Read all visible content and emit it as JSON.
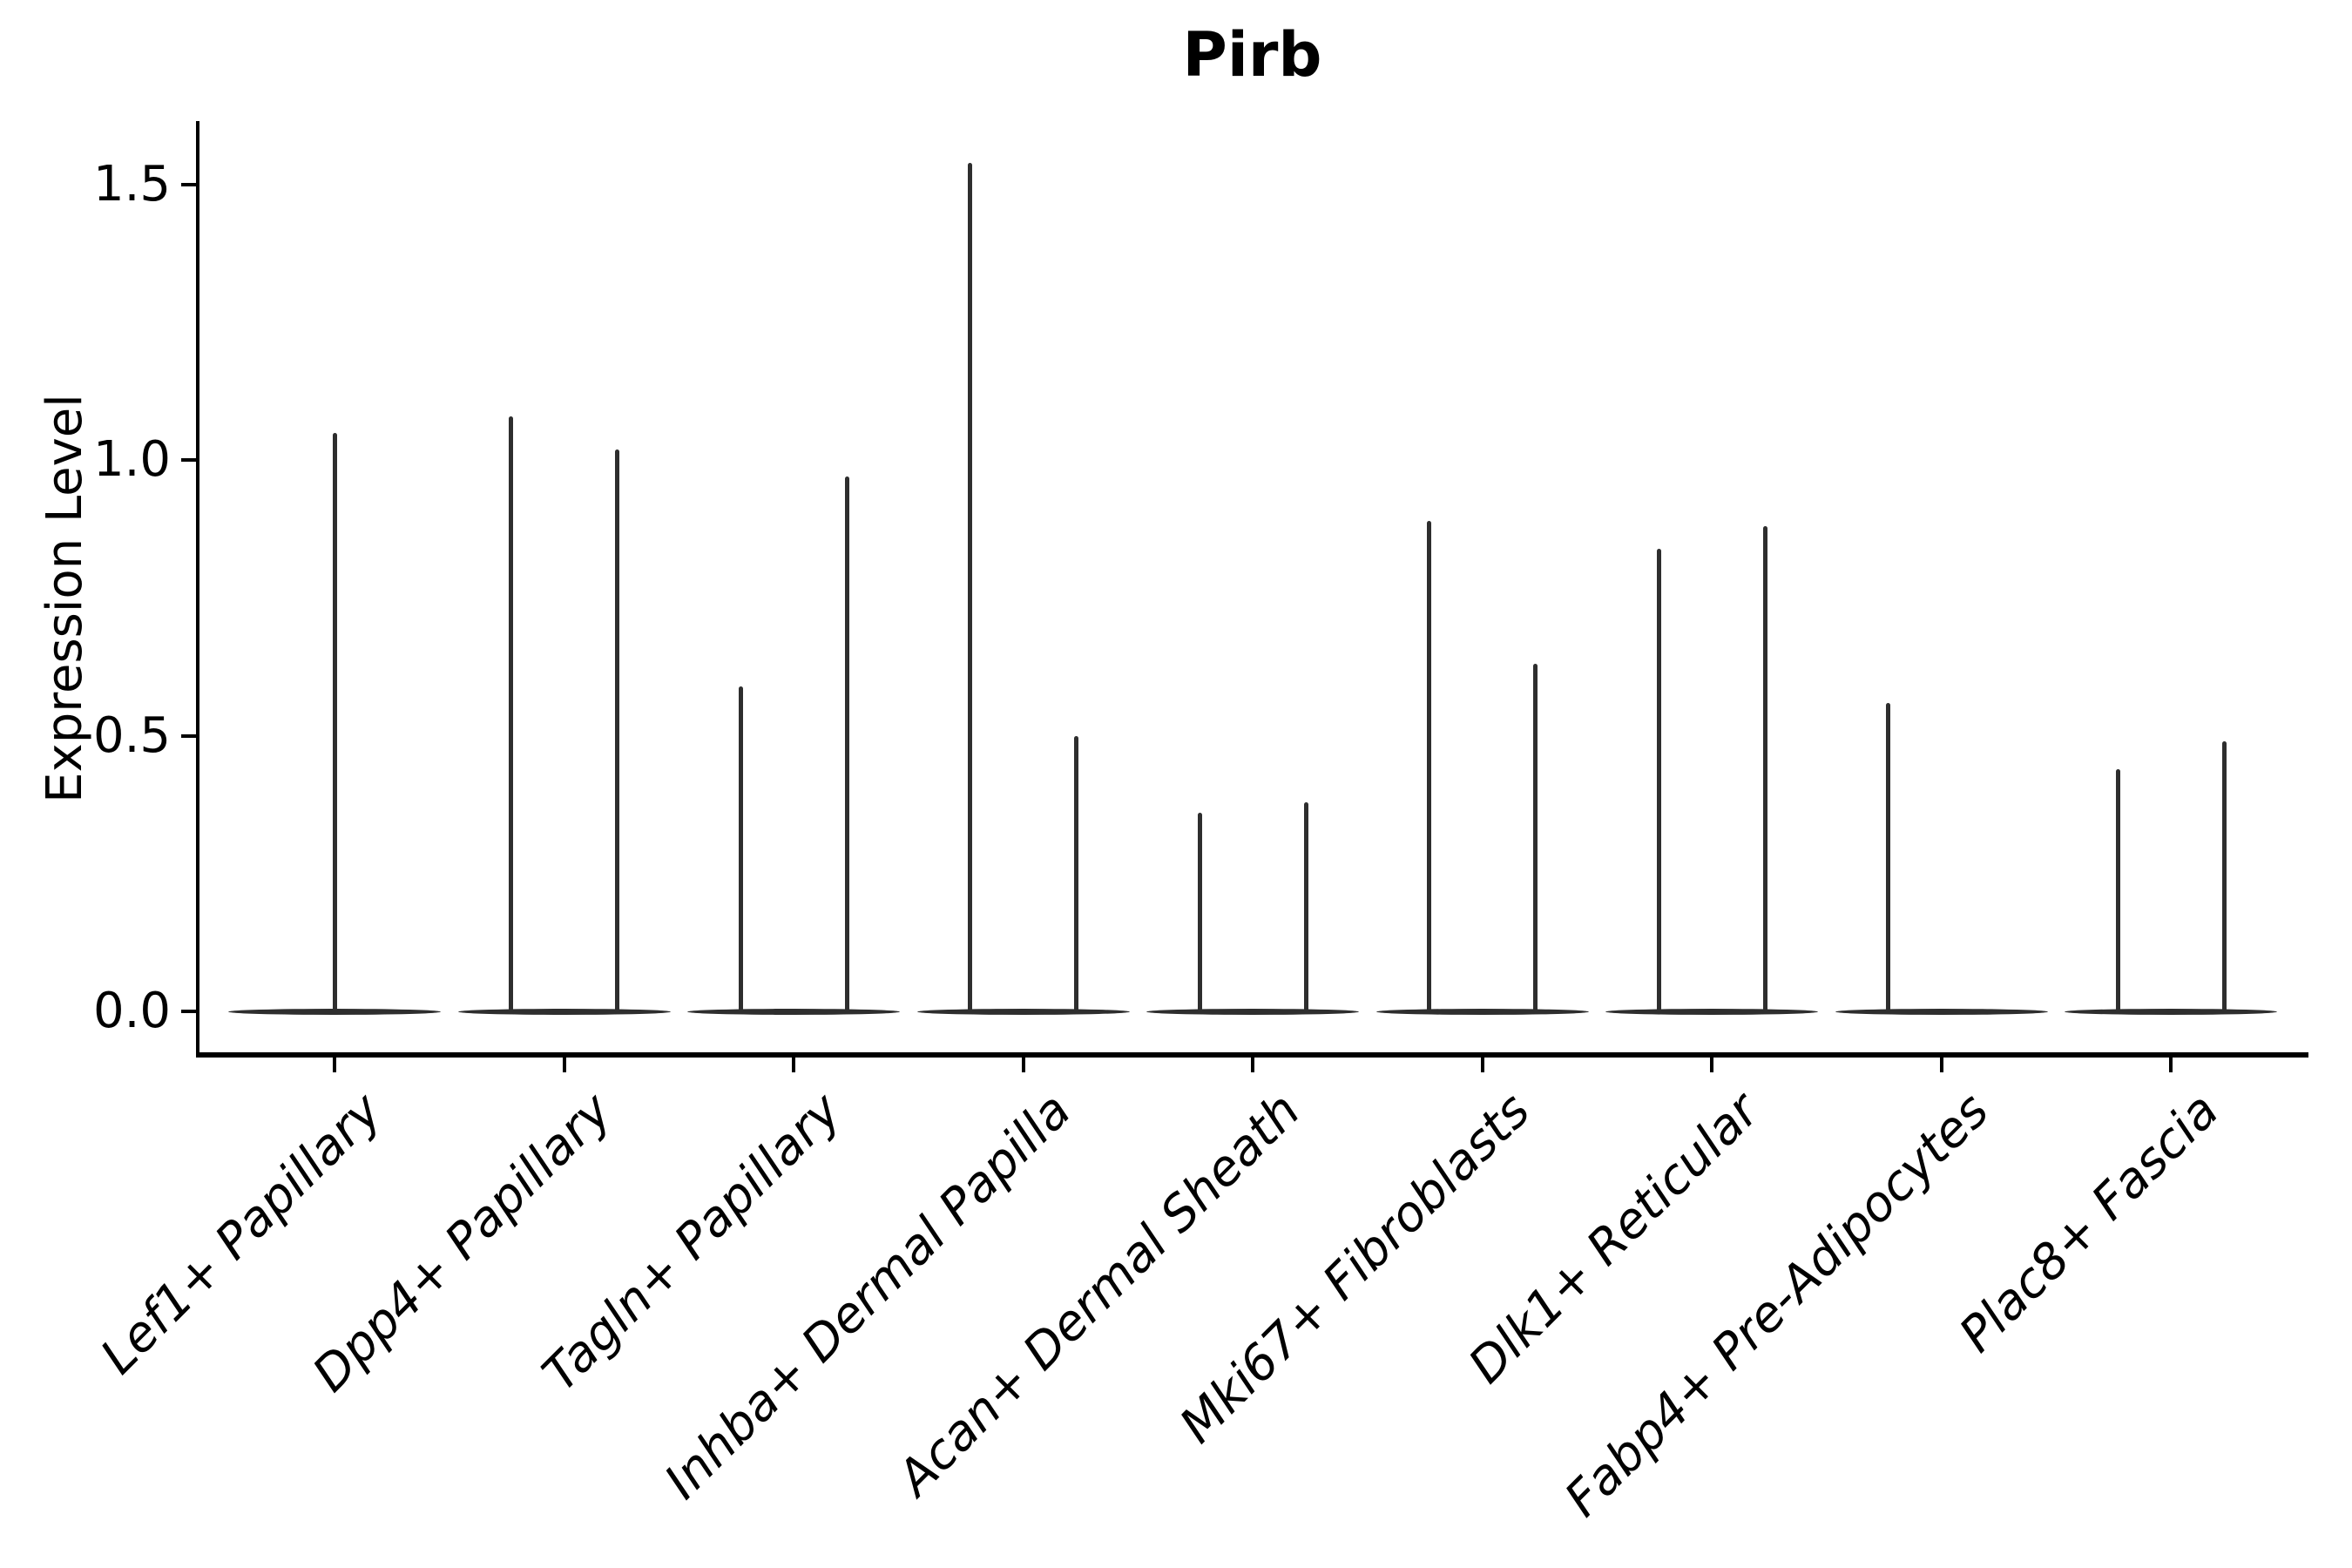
{
  "figure": {
    "title": "Pirb"
  },
  "colors": {
    "background": "#ffffff",
    "axis": "#000000",
    "text": "#000000",
    "violin_stroke": "#2e2e2e"
  },
  "chart_data": {
    "type": "violin",
    "title": "Pirb",
    "xlabel": "",
    "ylabel": "Expression Level",
    "ylim": [
      -0.07,
      1.63
    ],
    "grid": false,
    "legend": "none",
    "yticks": [
      {
        "value": 0.0,
        "label": "0.0"
      },
      {
        "value": 0.5,
        "label": "0.5"
      },
      {
        "value": 1.0,
        "label": "1.0"
      },
      {
        "value": 1.5,
        "label": "1.5"
      }
    ],
    "categories": [
      "Lef1+ Papillary",
      "Dpp4+ Papillary",
      "Tagln+ Papillary",
      "Inhba+ Dermal Papilla",
      "Acan+ Dermal Sheath",
      "Mki67+ Fibroblasts",
      "Dlk1+ Reticular",
      "Fabp4+ Pre-Adipocytes",
      "Plac8+ Fascia"
    ],
    "violins": [
      {
        "category": "Lef1+ Papillary",
        "baseline_value": 0.0,
        "spikes": [
          {
            "position": "center",
            "max_value": 1.05
          }
        ]
      },
      {
        "category": "Dpp4+ Papillary",
        "baseline_value": 0.0,
        "spikes": [
          {
            "position": "left",
            "max_value": 1.08
          },
          {
            "position": "right",
            "max_value": 1.02
          }
        ]
      },
      {
        "category": "Tagln+ Papillary",
        "baseline_value": 0.0,
        "spikes": [
          {
            "position": "left",
            "max_value": 0.59
          },
          {
            "position": "right",
            "max_value": 0.97
          }
        ]
      },
      {
        "category": "Inhba+ Dermal Papilla",
        "baseline_value": 0.0,
        "spikes": [
          {
            "position": "left",
            "max_value": 1.54
          },
          {
            "position": "right",
            "max_value": 0.5
          }
        ]
      },
      {
        "category": "Acan+ Dermal Sheath",
        "baseline_value": 0.0,
        "spikes": [
          {
            "position": "left",
            "max_value": 0.36
          },
          {
            "position": "right",
            "max_value": 0.38
          }
        ]
      },
      {
        "category": "Mki67+ Fibroblasts",
        "baseline_value": 0.0,
        "spikes": [
          {
            "position": "left",
            "max_value": 0.89
          },
          {
            "position": "right",
            "max_value": 0.63
          }
        ]
      },
      {
        "category": "Dlk1+ Reticular",
        "baseline_value": 0.0,
        "spikes": [
          {
            "position": "left",
            "max_value": 0.84
          },
          {
            "position": "right",
            "max_value": 0.88
          }
        ]
      },
      {
        "category": "Fabp4+ Pre-Adipocytes",
        "baseline_value": 0.0,
        "spikes": [
          {
            "position": "left",
            "max_value": 0.56
          }
        ]
      },
      {
        "category": "Plac8+ Fascia",
        "baseline_value": 0.0,
        "spikes": [
          {
            "position": "left",
            "max_value": 0.44
          },
          {
            "position": "right",
            "max_value": 0.49
          }
        ]
      }
    ]
  }
}
